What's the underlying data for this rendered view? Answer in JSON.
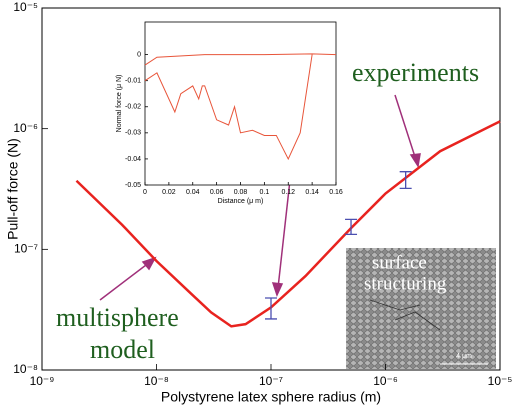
{
  "chart_data": [
    {
      "type": "line",
      "xlabel": "Polystyrene latex sphere radius (m)",
      "ylabel": "Pull-off force (N)",
      "xscale": "log",
      "yscale": "log",
      "xlim": [
        1e-09,
        1e-05
      ],
      "ylim": [
        1e-08,
        1e-05
      ],
      "xticks": [
        {
          "value": 1e-09,
          "label": "10⁻⁹"
        },
        {
          "value": 1e-08,
          "label": "10⁻⁸"
        },
        {
          "value": 1e-07,
          "label": "10⁻⁷"
        },
        {
          "value": 1e-06,
          "label": "10⁻⁶"
        },
        {
          "value": 1e-05,
          "label": "10⁻⁵"
        }
      ],
      "yticks": [
        {
          "value": 1e-08,
          "label": "10⁻⁸"
        },
        {
          "value": 1e-07,
          "label": "10⁻⁷"
        },
        {
          "value": 1e-06,
          "label": "10⁻⁶"
        },
        {
          "value": 1e-05,
          "label": "10⁻⁵"
        }
      ],
      "series": [
        {
          "color": "#e8231f",
          "x": [
            2e-09,
            5e-09,
            1e-08,
            2e-08,
            3e-08,
            4.5e-08,
            6e-08,
            1e-07,
            2e-07,
            5e-07,
            1e-06,
            3e-06,
            1e-05
          ],
          "values": [
            3.7e-07,
            1.6e-07,
            8e-08,
            4.3e-08,
            3e-08,
            2.3e-08,
            2.4e-08,
            3.3e-08,
            6e-08,
            1.5e-07,
            2.9e-07,
            6.5e-07,
            1.15e-06
          ]
        },
        {
          "color": "#4b4fb0",
          "x": [
            1e-07,
            5e-07,
            1.5e-06
          ],
          "values": [
            3.3e-08,
            1.55e-07,
            3.8e-07
          ],
          "errors": [
            6.5e-09,
            2.2e-08,
            6e-08
          ]
        }
      ],
      "annotations": [
        "experiments",
        "multisphere",
        "model",
        "surface",
        "structuring",
        "4 μm"
      ]
    },
    {
      "type": "line",
      "xlabel": "Distance (μ m)",
      "ylabel": "Normal force (μ N)",
      "xlim": [
        0,
        0.16
      ],
      "ylim": [
        -0.05,
        0.0125
      ],
      "xticks": [
        0,
        0.02,
        0.04,
        0.06,
        0.08,
        0.1,
        0.12,
        0.14,
        0.16
      ],
      "yticks": [
        0,
        -0.01,
        -0.02,
        -0.03,
        -0.04,
        -0.05
      ],
      "series": [
        {
          "color": "#e8553a",
          "x": [
            0,
            0.01,
            0.05,
            0.1,
            0.14,
            0.16
          ],
          "values": [
            -0.004,
            -0.001,
            0,
            0,
            0.0003,
            0
          ]
        },
        {
          "color": "#e8553a",
          "x": [
            0,
            0.01,
            0.025,
            0.03,
            0.04,
            0.045,
            0.048,
            0.05,
            0.06,
            0.07,
            0.075,
            0.08,
            0.09,
            0.1,
            0.11,
            0.12,
            0.13,
            0.14
          ],
          "values": [
            -0.01,
            -0.007,
            -0.022,
            -0.015,
            -0.012,
            -0.017,
            -0.012,
            -0.012,
            -0.025,
            -0.027,
            -0.02,
            -0.03,
            -0.029,
            -0.031,
            -0.031,
            -0.04,
            -0.03,
            0
          ]
        }
      ]
    }
  ]
}
